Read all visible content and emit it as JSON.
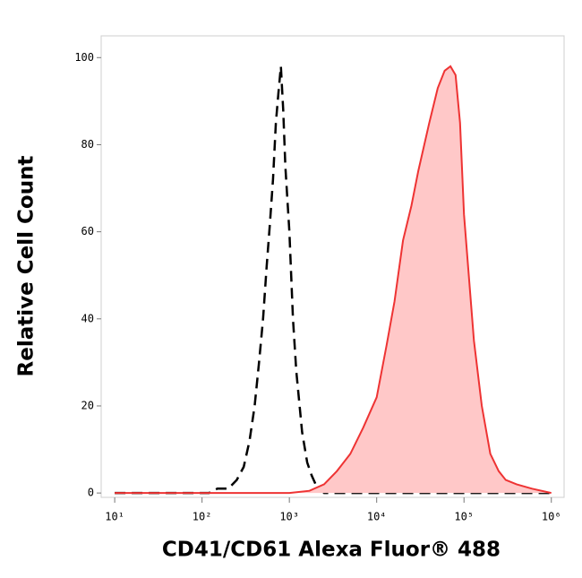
{
  "chart_data": {
    "type": "area",
    "x_label": "CD41/CD61 Alexa Fluor® 488",
    "y_label": "Relative Cell Count",
    "xscale": "log",
    "xlim": [
      7,
      1400000
    ],
    "ylim": [
      -1,
      105
    ],
    "xticks": [
      {
        "value": 10,
        "label": "10¹"
      },
      {
        "value": 100,
        "label": "10²"
      },
      {
        "value": 1000,
        "label": "10³"
      },
      {
        "value": 10000,
        "label": "10⁴"
      },
      {
        "value": 100000,
        "label": "10⁵"
      },
      {
        "value": 1000000,
        "label": "10⁶"
      }
    ],
    "yticks": [
      0,
      20,
      40,
      60,
      80,
      100
    ],
    "series": [
      {
        "color": "#000000",
        "style": "dashed",
        "fill": "none",
        "x": [
          10,
          120,
          150,
          200,
          250,
          300,
          350,
          400,
          450,
          500,
          550,
          600,
          650,
          700,
          750,
          800,
          850,
          900,
          1000,
          1100,
          1200,
          1400,
          1600,
          1800,
          2000,
          2500,
          1000000
        ],
        "values": [
          0,
          0,
          1,
          1,
          3,
          6,
          12,
          20,
          30,
          40,
          52,
          62,
          72,
          85,
          92,
          98,
          88,
          75,
          60,
          40,
          28,
          14,
          7,
          4,
          2,
          0,
          0
        ]
      },
      {
        "color": "#ee3333",
        "style": "solid",
        "fill": "#ffc8c8",
        "x": [
          10,
          1000,
          1700,
          2500,
          3500,
          5000,
          7000,
          10000,
          13000,
          16000,
          20000,
          25000,
          30000,
          40000,
          50000,
          60000,
          70000,
          80000,
          90000,
          100000,
          130000,
          160000,
          200000,
          250000,
          300000,
          400000,
          600000,
          1000000
        ],
        "values": [
          0,
          0,
          0.5,
          2,
          5,
          9,
          15,
          22,
          34,
          44,
          58,
          66,
          74,
          85,
          93,
          97,
          98,
          96,
          85,
          64,
          35,
          20,
          9,
          5,
          3,
          2,
          1,
          0
        ]
      }
    ]
  }
}
